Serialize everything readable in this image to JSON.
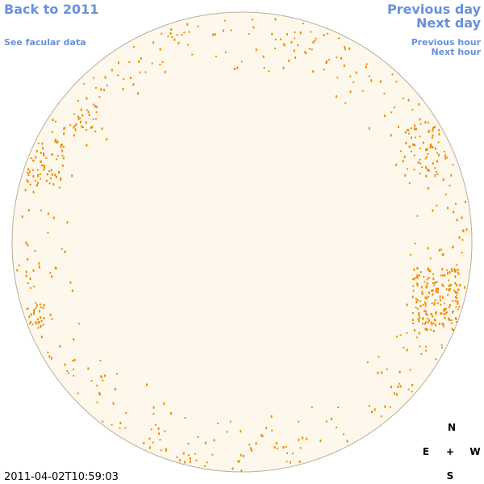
{
  "nav": {
    "back": "Back to 2011",
    "facular": "See facular data",
    "previous_day": "Previous day",
    "next_day": "Next day",
    "previous_hour": "Previous hour",
    "next_hour": "Next hour"
  },
  "compass": {
    "north": "N",
    "east": "E",
    "center": "+",
    "west": "W",
    "south": "S"
  },
  "timestamp": "2011-04-02T10:59:03"
}
